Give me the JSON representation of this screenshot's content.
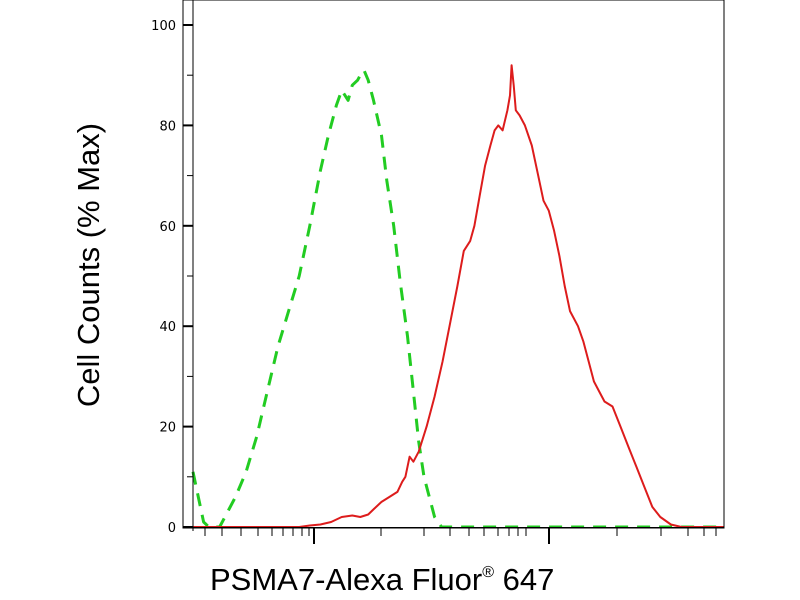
{
  "chart_data": {
    "type": "line",
    "title": "",
    "ylabel": "Cell Counts (% Max)",
    "xlabel": {
      "text": "PSMA7-Alexa Fluor",
      "reg": "®",
      "suffix": " 647"
    },
    "ylim": [
      0,
      100
    ],
    "yticks": [
      "0",
      "20",
      "40",
      "60",
      "80",
      "100"
    ],
    "x_scale": "log",
    "xlim": [
      0,
      100
    ],
    "grid": false,
    "legend": "none",
    "series": [
      {
        "color": "#22cc22",
        "style": "dashed",
        "points": [
          [
            0.0,
            11
          ],
          [
            1.0,
            6
          ],
          [
            2.0,
            1
          ],
          [
            3.0,
            0
          ],
          [
            5.0,
            0
          ],
          [
            6.0,
            2
          ],
          [
            8.0,
            6
          ],
          [
            10.0,
            11
          ],
          [
            12.0,
            18
          ],
          [
            14.0,
            27
          ],
          [
            16.0,
            36
          ],
          [
            18.0,
            43
          ],
          [
            20.0,
            50
          ],
          [
            22.0,
            60
          ],
          [
            24.0,
            71
          ],
          [
            25.5,
            78
          ],
          [
            27.0,
            84
          ],
          [
            28.0,
            87
          ],
          [
            29.2,
            85
          ],
          [
            30.0,
            88
          ],
          [
            31.0,
            89
          ],
          [
            31.5,
            90
          ],
          [
            32.2,
            91
          ],
          [
            33.0,
            89
          ],
          [
            34.0,
            85
          ],
          [
            35.5,
            78
          ],
          [
            36.5,
            69
          ],
          [
            37.8,
            60
          ],
          [
            39.0,
            49
          ],
          [
            40.4,
            38
          ],
          [
            41.5,
            27
          ],
          [
            42.5,
            17
          ],
          [
            43.5,
            10
          ],
          [
            44.5,
            6
          ],
          [
            45.5,
            2
          ],
          [
            46.8,
            0
          ],
          [
            48.0,
            0
          ],
          [
            60.0,
            0
          ],
          [
            80.0,
            0
          ],
          [
            89.0,
            0
          ],
          [
            100.0,
            0
          ]
        ]
      },
      {
        "color": "#dd1c1c",
        "style": "solid",
        "points": [
          [
            0.0,
            0
          ],
          [
            14.0,
            0
          ],
          [
            20.0,
            0
          ],
          [
            22.0,
            0.3
          ],
          [
            24.0,
            0.5
          ],
          [
            26.0,
            1
          ],
          [
            28.0,
            2
          ],
          [
            30.0,
            2.3
          ],
          [
            31.5,
            2
          ],
          [
            33.0,
            2.5
          ],
          [
            34.0,
            3.5
          ],
          [
            35.5,
            5
          ],
          [
            37.0,
            6
          ],
          [
            38.5,
            7
          ],
          [
            39.4,
            9
          ],
          [
            40.0,
            10
          ],
          [
            40.8,
            14
          ],
          [
            41.5,
            13
          ],
          [
            42.5,
            15
          ],
          [
            44.0,
            20
          ],
          [
            45.5,
            26
          ],
          [
            47.0,
            33
          ],
          [
            48.5,
            41
          ],
          [
            49.8,
            48
          ],
          [
            51.0,
            55
          ],
          [
            52.2,
            57
          ],
          [
            53.0,
            60
          ],
          [
            54.0,
            66
          ],
          [
            55.0,
            72
          ],
          [
            56.0,
            76
          ],
          [
            56.8,
            79
          ],
          [
            57.5,
            80
          ],
          [
            58.3,
            79
          ],
          [
            59.2,
            83
          ],
          [
            59.7,
            86
          ],
          [
            60.0,
            92
          ],
          [
            60.4,
            88
          ],
          [
            60.8,
            83
          ],
          [
            61.5,
            82
          ],
          [
            62.5,
            80
          ],
          [
            63.8,
            76
          ],
          [
            65.0,
            70
          ],
          [
            66.0,
            65
          ],
          [
            67.0,
            63
          ],
          [
            68.0,
            59
          ],
          [
            69.0,
            54
          ],
          [
            70.0,
            48
          ],
          [
            71.0,
            43
          ],
          [
            72.5,
            40
          ],
          [
            73.5,
            37
          ],
          [
            74.5,
            33
          ],
          [
            75.5,
            29
          ],
          [
            76.5,
            27
          ],
          [
            77.5,
            25
          ],
          [
            79.0,
            24
          ],
          [
            80.5,
            20
          ],
          [
            82.0,
            16
          ],
          [
            83.5,
            12
          ],
          [
            85.0,
            8
          ],
          [
            86.5,
            4
          ],
          [
            88.0,
            2
          ],
          [
            90.0,
            0.5
          ],
          [
            92.0,
            0
          ],
          [
            100.0,
            0
          ]
        ]
      }
    ]
  }
}
